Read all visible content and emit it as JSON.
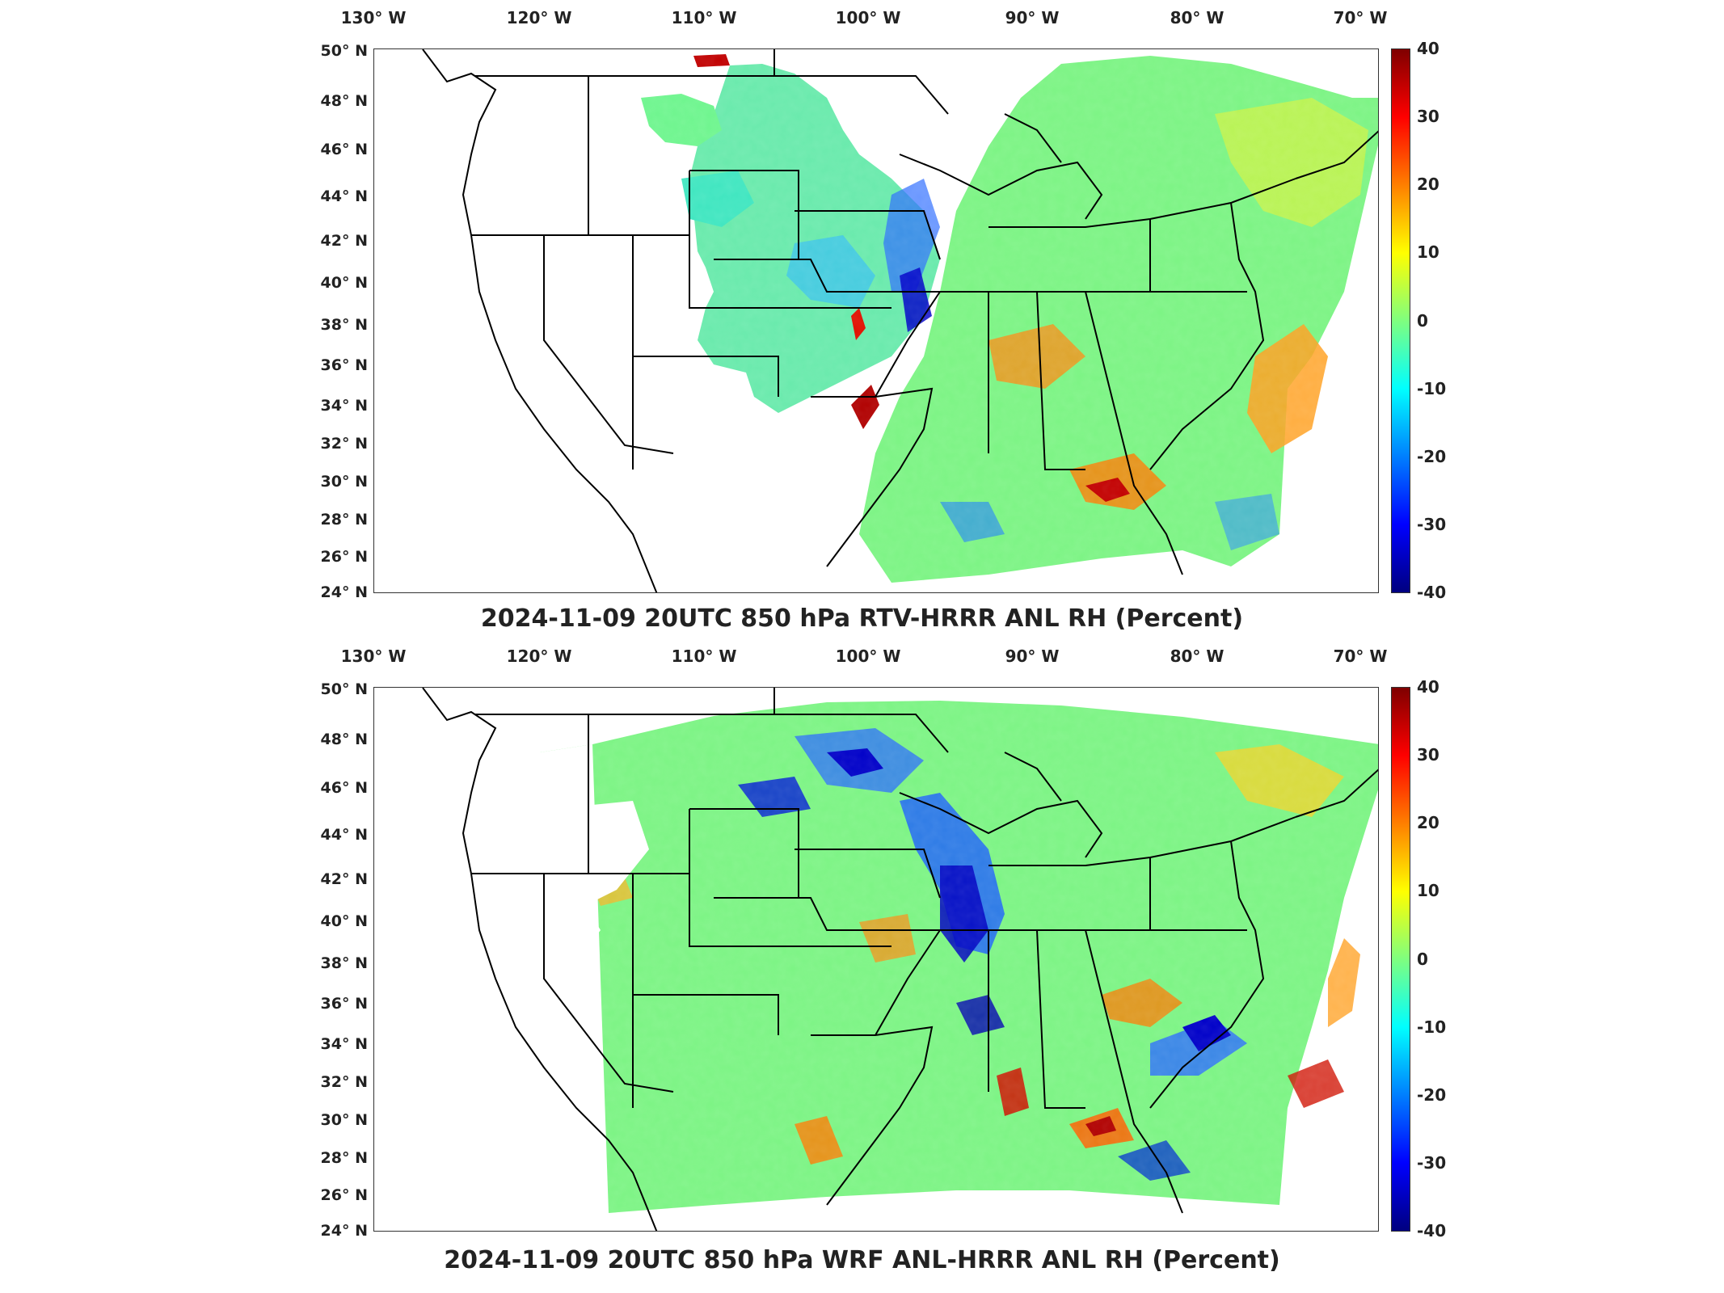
{
  "colorbar_colors": {
    "stops": [
      "#00007f",
      "#0000ff",
      "#007fff",
      "#00ffff",
      "#7fff7f",
      "#ffff00",
      "#ff7f00",
      "#ff0000",
      "#7f0000"
    ]
  },
  "axes": {
    "longitude_labels": [
      "130° W",
      "120° W",
      "110° W",
      "100° W",
      "90° W",
      "80° W",
      "70° W"
    ],
    "latitude_labels": [
      "50° N",
      "48° N",
      "46° N",
      "44° N",
      "42° N",
      "40° N",
      "38° N",
      "36° N",
      "34° N",
      "32° N",
      "30° N",
      "28° N",
      "26° N",
      "24° N"
    ],
    "colorbar_ticks": [
      "40",
      "30",
      "20",
      "10",
      "0",
      "-10",
      "-20",
      "-30",
      "-40"
    ]
  },
  "panels": [
    {
      "title": "2024-11-09 20UTC 850 hPa RTV-HRRR ANL RH (Percent)",
      "colorbar_range": [
        -40,
        40
      ]
    },
    {
      "title": "2024-11-09 20UTC 850 hPa WRF ANL-HRRR ANL RH (Percent)",
      "colorbar_range": [
        -40,
        40
      ]
    }
  ]
}
